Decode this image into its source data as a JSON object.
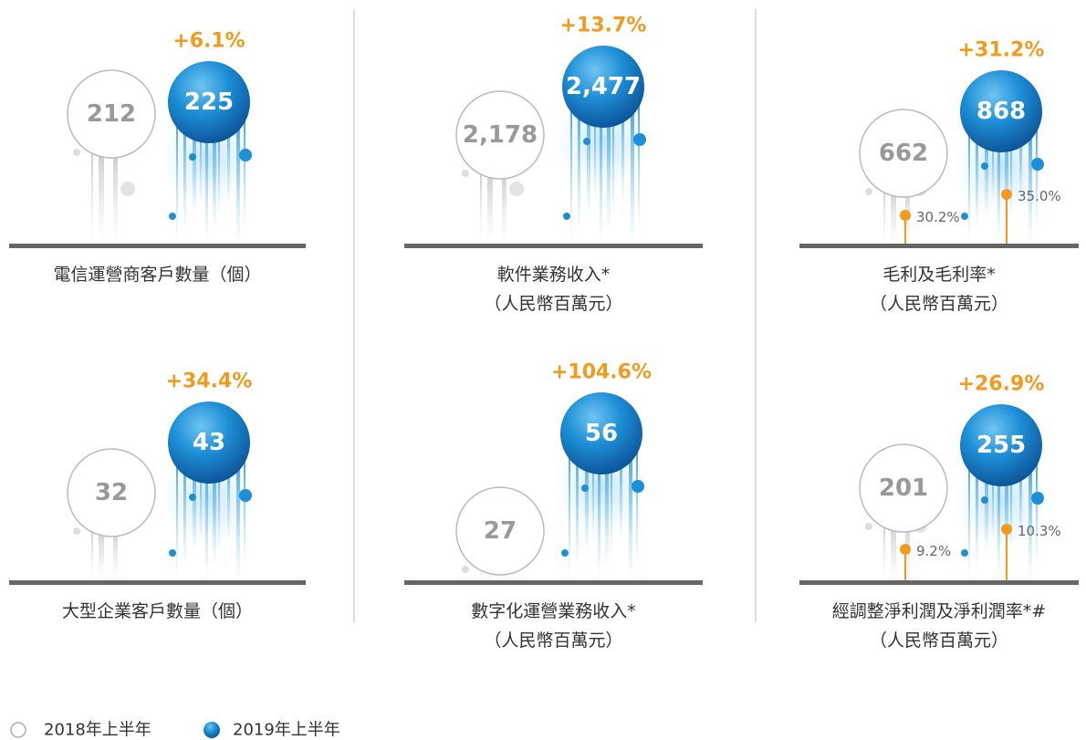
{
  "panels": [
    {
      "growth": "+6.1%",
      "value_2018": "212",
      "value_2019": "225",
      "title": [
        "電信運營商客戶數量（個）"
      ]
    },
    {
      "growth": "+13.7%",
      "value_2018": "2,178",
      "value_2019": "2,477",
      "title": [
        "軟件業務收入*",
        "（人民幣百萬元）"
      ]
    },
    {
      "growth": "+31.2%",
      "value_2018": "662",
      "value_2019": "868",
      "title": [
        "毛利及毛利率*",
        "（人民幣百萬元）"
      ],
      "margin_2018": "30.2%",
      "margin_2019": "35.0%"
    },
    {
      "growth": "+34.4%",
      "value_2018": "32",
      "value_2019": "43",
      "title": [
        "大型企業客戶數量（個）"
      ]
    },
    {
      "growth": "+104.6%",
      "value_2018": "27",
      "value_2019": "56",
      "title": [
        "數字化運營業務收入*",
        "（人民幣百萬元）"
      ]
    },
    {
      "growth": "+26.9%",
      "value_2018": "201",
      "value_2019": "255",
      "title": [
        "經調整淨利潤及淨利潤率*#",
        "（人民幣百萬元）"
      ],
      "margin_2018": "9.2%",
      "margin_2019": "10.3%"
    }
  ],
  "legend": [
    "2018年上半年",
    "2019年上半年"
  ]
}
